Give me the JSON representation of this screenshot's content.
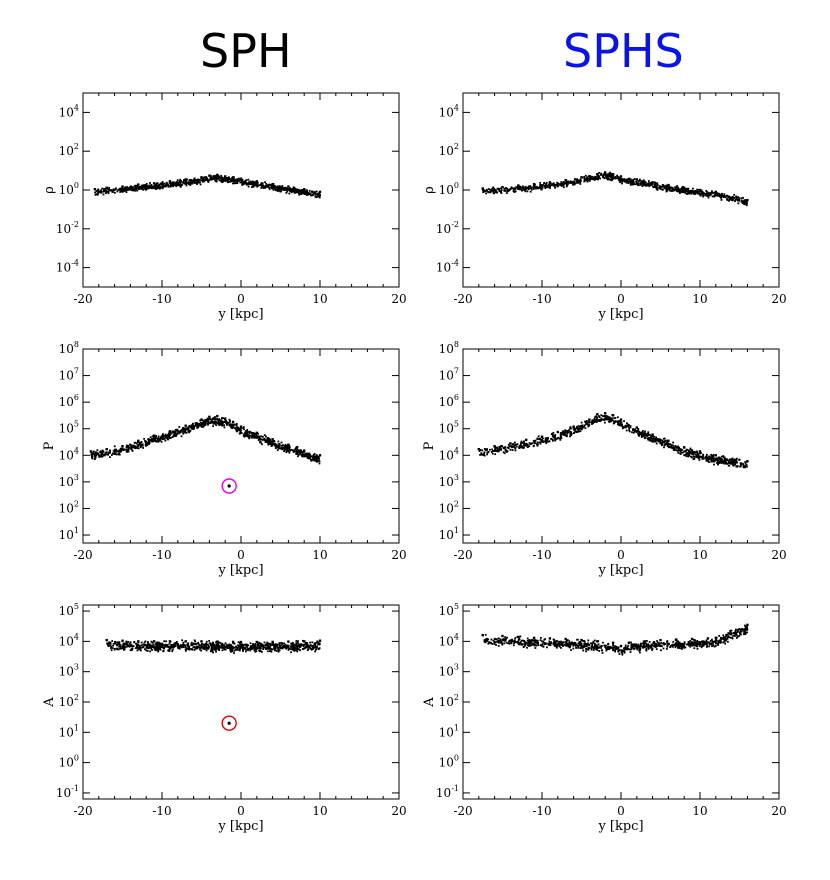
{
  "column_titles": {
    "left": "SPH",
    "right": "SPHS",
    "left_color": "#000000",
    "right_color": "#0a14e6"
  },
  "chart_data": [
    {
      "type": "scatter",
      "panel": "rho-sph",
      "column": "SPH",
      "xlabel": "y [kpc]",
      "ylabel": "ρ",
      "xlim": [
        -20,
        20
      ],
      "xticks": [
        -20,
        -10,
        0,
        10,
        20
      ],
      "yscale": "log",
      "ylim_exp": [
        -5,
        5
      ],
      "yticks_exp": [
        -4,
        -2,
        0,
        2,
        4
      ],
      "grid": false,
      "series": [
        {
          "x": [
            -18.5,
            -17,
            -15,
            -13,
            -11,
            -9,
            -7,
            -5,
            -4,
            -3,
            -2,
            -1,
            0,
            2,
            4,
            6,
            8,
            10
          ],
          "y": [
            1.1,
            1.3,
            1.5,
            1.9,
            2.2,
            2.8,
            3.5,
            4.5,
            5.5,
            6.0,
            5.0,
            4.5,
            3.8,
            2.8,
            2.0,
            1.5,
            1.1,
            0.8
          ]
        }
      ],
      "markers": []
    },
    {
      "type": "scatter",
      "panel": "rho-sphs",
      "column": "SPHS",
      "xlabel": "y [kpc]",
      "ylabel": "ρ",
      "xlim": [
        -20,
        20
      ],
      "xticks": [
        -20,
        -10,
        0,
        10,
        20
      ],
      "yscale": "log",
      "ylim_exp": [
        -5,
        5
      ],
      "yticks_exp": [
        -4,
        -2,
        0,
        2,
        4
      ],
      "grid": false,
      "series": [
        {
          "x": [
            -17.5,
            -15,
            -13,
            -11,
            -9,
            -7,
            -5,
            -3,
            -2,
            -1,
            0,
            2,
            4,
            6,
            8,
            10,
            12,
            16
          ],
          "y": [
            1.2,
            1.4,
            1.7,
            2.0,
            2.5,
            3.2,
            4.5,
            6.5,
            8.0,
            6.5,
            5.0,
            3.5,
            2.5,
            1.8,
            1.3,
            1.0,
            0.8,
            0.3
          ]
        }
      ],
      "markers": []
    },
    {
      "type": "scatter",
      "panel": "p-sph",
      "column": "SPH",
      "xlabel": "y [kpc]",
      "ylabel": "P",
      "xlim": [
        -20,
        20
      ],
      "xticks": [
        -20,
        -10,
        0,
        10,
        20
      ],
      "yscale": "log",
      "ylim_exp": [
        0.7,
        8
      ],
      "yticks_exp": [
        1,
        2,
        3,
        4,
        5,
        6,
        7,
        8
      ],
      "grid": false,
      "series": [
        {
          "x": [
            -19,
            -17,
            -15,
            -13,
            -11,
            -9,
            -7,
            -5,
            -4,
            -3,
            -2,
            -1,
            0,
            2,
            4,
            6,
            8,
            10
          ],
          "y": [
            14000,
            17000,
            22000,
            35000,
            55000,
            80000,
            130000,
            220000,
            280000,
            300000,
            240000,
            180000,
            120000,
            70000,
            40000,
            25000,
            15000,
            10000
          ]
        }
      ],
      "markers": [
        {
          "x": -1.5,
          "y": 700,
          "color": "#e600e6"
        }
      ]
    },
    {
      "type": "scatter",
      "panel": "p-sphs",
      "column": "SPHS",
      "xlabel": "y [kpc]",
      "ylabel": "P",
      "xlim": [
        -20,
        20
      ],
      "xticks": [
        -20,
        -10,
        0,
        10,
        20
      ],
      "yscale": "log",
      "ylim_exp": [
        0.7,
        8
      ],
      "yticks_exp": [
        1,
        2,
        3,
        4,
        5,
        6,
        7,
        8
      ],
      "grid": false,
      "series": [
        {
          "x": [
            -18,
            -16,
            -14,
            -12,
            -10,
            -8,
            -6,
            -4,
            -3,
            -2,
            -1,
            0,
            2,
            4,
            6,
            8,
            10,
            12,
            16
          ],
          "y": [
            17000,
            22000,
            28000,
            38000,
            50000,
            75000,
            120000,
            220000,
            350000,
            380000,
            320000,
            220000,
            110000,
            60000,
            35000,
            20000,
            14000,
            10000,
            6000
          ]
        }
      ],
      "markers": []
    },
    {
      "type": "scatter",
      "panel": "a-sph",
      "column": "SPH",
      "xlabel": "y [kpc]",
      "ylabel": "A",
      "xlim": [
        -20,
        20
      ],
      "xticks": [
        -20,
        -10,
        0,
        10,
        20
      ],
      "yscale": "log",
      "ylim_exp": [
        -1.2,
        5.2
      ],
      "yticks_exp": [
        -1,
        0,
        1,
        2,
        3,
        4,
        5
      ],
      "grid": false,
      "series": [
        {
          "x": [
            -17,
            -15,
            -13,
            -11,
            -9,
            -7,
            -5,
            -3,
            -1,
            0,
            2,
            4,
            6,
            8,
            10
          ],
          "y": [
            11000,
            10500,
            10000,
            10000,
            10000,
            10000,
            10000,
            9800,
            9600,
            9500,
            9500,
            9600,
            9800,
            10000,
            10500
          ]
        }
      ],
      "markers": [
        {
          "x": -1.5,
          "y": 20,
          "color": "#e60000"
        }
      ]
    },
    {
      "type": "scatter",
      "panel": "a-sphs",
      "column": "SPHS",
      "xlabel": "y [kpc]",
      "ylabel": "A",
      "xlim": [
        -20,
        20
      ],
      "xticks": [
        -20,
        -10,
        0,
        10,
        20
      ],
      "yscale": "log",
      "ylim_exp": [
        -1.2,
        5.2
      ],
      "yticks_exp": [
        -1,
        0,
        1,
        2,
        3,
        4,
        5
      ],
      "grid": false,
      "series": [
        {
          "x": [
            -17.5,
            -15,
            -13,
            -11,
            -9,
            -7,
            -5,
            -3,
            -1,
            0,
            1,
            3,
            5,
            7,
            9,
            11,
            12,
            16
          ],
          "y": [
            16000,
            15000,
            14000,
            13000,
            12500,
            12000,
            11000,
            10000,
            9000,
            7000,
            9000,
            10000,
            11000,
            11500,
            12000,
            12500,
            13000,
            35000
          ]
        }
      ],
      "markers": []
    }
  ]
}
